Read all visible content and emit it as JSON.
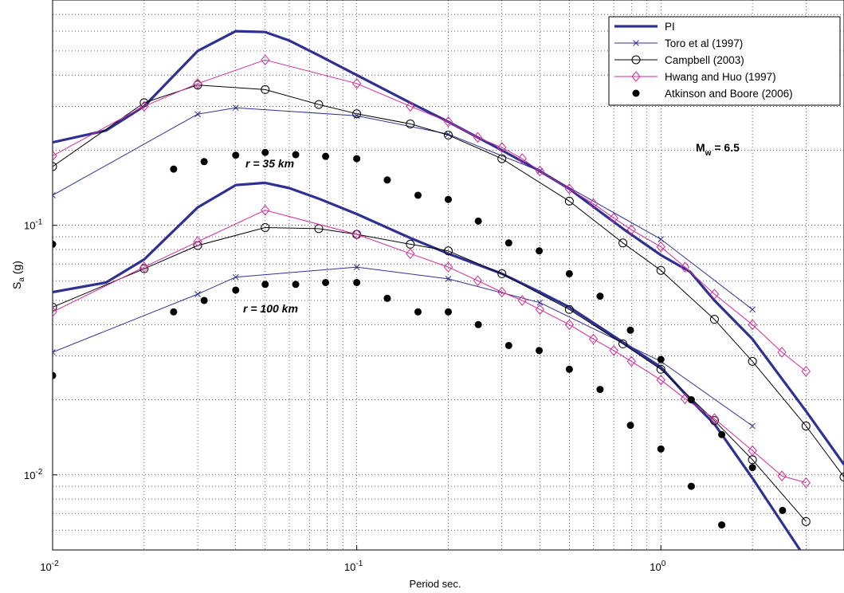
{
  "chart_data": {
    "type": "line",
    "xlabel": "Period sec.",
    "ylabel": "Sa (g)",
    "ylabel_main": "S",
    "ylabel_sub": "a",
    "ylabel_unit": " (g)",
    "x_scale": "log",
    "y_scale": "log",
    "xlim": [
      0.01,
      4
    ],
    "ylim": [
      0.005,
      0.8
    ],
    "grid": true,
    "legend_position": "top-right",
    "x_ticks": [
      {
        "value": 0.01,
        "base": "10",
        "exp": "-2"
      },
      {
        "value": 0.1,
        "base": "10",
        "exp": "-1"
      },
      {
        "value": 1,
        "base": "10",
        "exp": "0"
      }
    ],
    "y_ticks": [
      {
        "value": 0.01,
        "base": "10",
        "exp": "-2"
      },
      {
        "value": 0.1,
        "base": "10",
        "exp": "-1"
      }
    ],
    "annotations": [
      {
        "text": "r = 35 km",
        "x": 0.021,
        "y": 0.165,
        "style": "bold-italic"
      },
      {
        "text": "r = 100 km",
        "x": 0.02,
        "y": 0.042,
        "style": "bold-italic"
      },
      {
        "text_main": "M",
        "text_sub": "w",
        "text_rest": " = 6.5",
        "x": 1.12,
        "y": 0.2
      }
    ],
    "series": [
      {
        "name": "PI",
        "color": "#2e3192",
        "marker": "none",
        "line": true,
        "width": 3.2,
        "groups": [
          {
            "label": "r = 35 km",
            "x": [
              0.01,
              0.015,
              0.02,
              0.03,
              0.04,
              0.05,
              0.06,
              0.075,
              0.1,
              0.15,
              0.2,
              0.3,
              0.4,
              0.5,
              0.75,
              1.0,
              1.25,
              1.5,
              2.0,
              3.0,
              4.0
            ],
            "y": [
              0.215,
              0.24,
              0.3,
              0.5,
              0.6,
              0.595,
              0.55,
              0.48,
              0.4,
              0.31,
              0.26,
              0.2,
              0.165,
              0.14,
              0.097,
              0.076,
              0.065,
              0.05,
              0.035,
              0.018,
              0.011
            ]
          },
          {
            "label": "r = 100 km",
            "x": [
              0.01,
              0.015,
              0.02,
              0.03,
              0.04,
              0.05,
              0.06,
              0.075,
              0.1,
              0.15,
              0.2,
              0.3,
              0.4,
              0.5,
              0.75,
              1.0,
              1.25,
              1.5,
              2.0,
              3.0
            ],
            "y": [
              0.054,
              0.059,
              0.073,
              0.118,
              0.145,
              0.148,
              0.141,
              0.128,
              0.111,
              0.089,
              0.077,
              0.064,
              0.054,
              0.047,
              0.034,
              0.027,
              0.02,
              0.016,
              0.0097,
              0.0046
            ]
          }
        ]
      },
      {
        "name": "Toro et al (1997)",
        "color": "#2e3192",
        "marker": "x",
        "line": true,
        "width": 1,
        "groups": [
          {
            "label": "r = 35 km",
            "x": [
              0.01,
              0.03,
              0.04,
              0.1,
              0.2,
              0.4,
              1.0,
              2.0
            ],
            "y": [
              0.132,
              0.279,
              0.296,
              0.275,
              0.232,
              0.165,
              0.088,
              0.046
            ]
          },
          {
            "label": "r = 100 km",
            "x": [
              0.01,
              0.03,
              0.04,
              0.1,
              0.2,
              0.4,
              1.0,
              2.0
            ],
            "y": [
              0.031,
              0.053,
              0.062,
              0.068,
              0.061,
              0.049,
              0.0285,
              0.0157
            ]
          }
        ]
      },
      {
        "name": "Campbell (2003)",
        "color": "#000000",
        "marker": "circle",
        "line": true,
        "width": 1,
        "groups": [
          {
            "label": "r = 35 km",
            "x": [
              0.01,
              0.02,
              0.03,
              0.05,
              0.075,
              0.1,
              0.15,
              0.2,
              0.3,
              0.5,
              0.75,
              1.0,
              1.5,
              2.0,
              3.0,
              4.0
            ],
            "y": [
              0.172,
              0.31,
              0.365,
              0.35,
              0.305,
              0.28,
              0.255,
              0.23,
              0.185,
              0.125,
              0.085,
              0.066,
              0.042,
              0.0285,
              0.0157,
              0.0098
            ]
          },
          {
            "label": "r = 100 km",
            "x": [
              0.01,
              0.02,
              0.03,
              0.05,
              0.075,
              0.1,
              0.15,
              0.2,
              0.3,
              0.5,
              0.75,
              1.0,
              1.5,
              2.0,
              3.0
            ],
            "y": [
              0.047,
              0.067,
              0.083,
              0.098,
              0.097,
              0.092,
              0.084,
              0.079,
              0.064,
              0.046,
              0.0335,
              0.0265,
              0.0165,
              0.0115,
              0.0065
            ]
          }
        ]
      },
      {
        "name": "Hwang and Huo (1997)",
        "color": "#d42a9a",
        "marker": "diamond",
        "line": true,
        "width": 1,
        "groups": [
          {
            "label": "r = 35 km",
            "x": [
              0.01,
              0.02,
              0.03,
              0.05,
              0.1,
              0.15,
              0.2,
              0.25,
              0.3,
              0.35,
              0.4,
              0.5,
              0.6,
              0.7,
              0.8,
              1.0,
              1.2,
              1.5,
              2.0,
              2.5,
              3.0
            ],
            "y": [
              0.19,
              0.3,
              0.37,
              0.46,
              0.37,
              0.3,
              0.26,
              0.225,
              0.205,
              0.185,
              0.165,
              0.14,
              0.122,
              0.107,
              0.096,
              0.082,
              0.068,
              0.053,
              0.04,
              0.031,
              0.026
            ]
          },
          {
            "label": "r = 100 km",
            "x": [
              0.01,
              0.02,
              0.03,
              0.05,
              0.1,
              0.15,
              0.2,
              0.25,
              0.3,
              0.35,
              0.4,
              0.5,
              0.6,
              0.7,
              0.8,
              1.0,
              1.2,
              1.5,
              2.0,
              2.5,
              3.0
            ],
            "y": [
              0.045,
              0.068,
              0.086,
              0.115,
              0.092,
              0.077,
              0.068,
              0.06,
              0.054,
              0.05,
              0.046,
              0.04,
              0.035,
              0.0315,
              0.0285,
              0.024,
              0.0202,
              0.0168,
              0.0125,
              0.0099,
              0.0093
            ]
          }
        ]
      },
      {
        "name": "Atkinson and Boore (2006)",
        "color": "#000000",
        "marker": "dot",
        "line": false,
        "groups": [
          {
            "label": "r = 35 km",
            "x": [
              0.01,
              0.025,
              0.0315,
              0.04,
              0.05,
              0.063,
              0.079,
              0.1,
              0.126,
              0.159,
              0.2,
              0.251,
              0.316,
              0.398,
              0.5,
              0.631,
              0.794,
              1.0,
              1.259,
              1.585,
              2.0,
              2.512
            ],
            "y": [
              0.084,
              0.168,
              0.18,
              0.191,
              0.196,
              0.192,
              0.189,
              0.185,
              0.152,
              0.132,
              0.127,
              0.104,
              0.085,
              0.079,
              0.064,
              0.052,
              0.038,
              0.029,
              0.02,
              0.0145,
              0.0107,
              0.0072
            ]
          },
          {
            "label": "r = 100 km",
            "x": [
              0.01,
              0.025,
              0.0315,
              0.04,
              0.05,
              0.063,
              0.079,
              0.1,
              0.126,
              0.159,
              0.2,
              0.251,
              0.316,
              0.398,
              0.5,
              0.631,
              0.794,
              1.0,
              1.259,
              1.585
            ],
            "y": [
              0.025,
              0.045,
              0.05,
              0.055,
              0.058,
              0.058,
              0.059,
              0.059,
              0.051,
              0.045,
              0.045,
              0.04,
              0.033,
              0.0315,
              0.0265,
              0.022,
              0.0158,
              0.0127,
              0.009,
              0.0063
            ]
          }
        ]
      }
    ]
  }
}
